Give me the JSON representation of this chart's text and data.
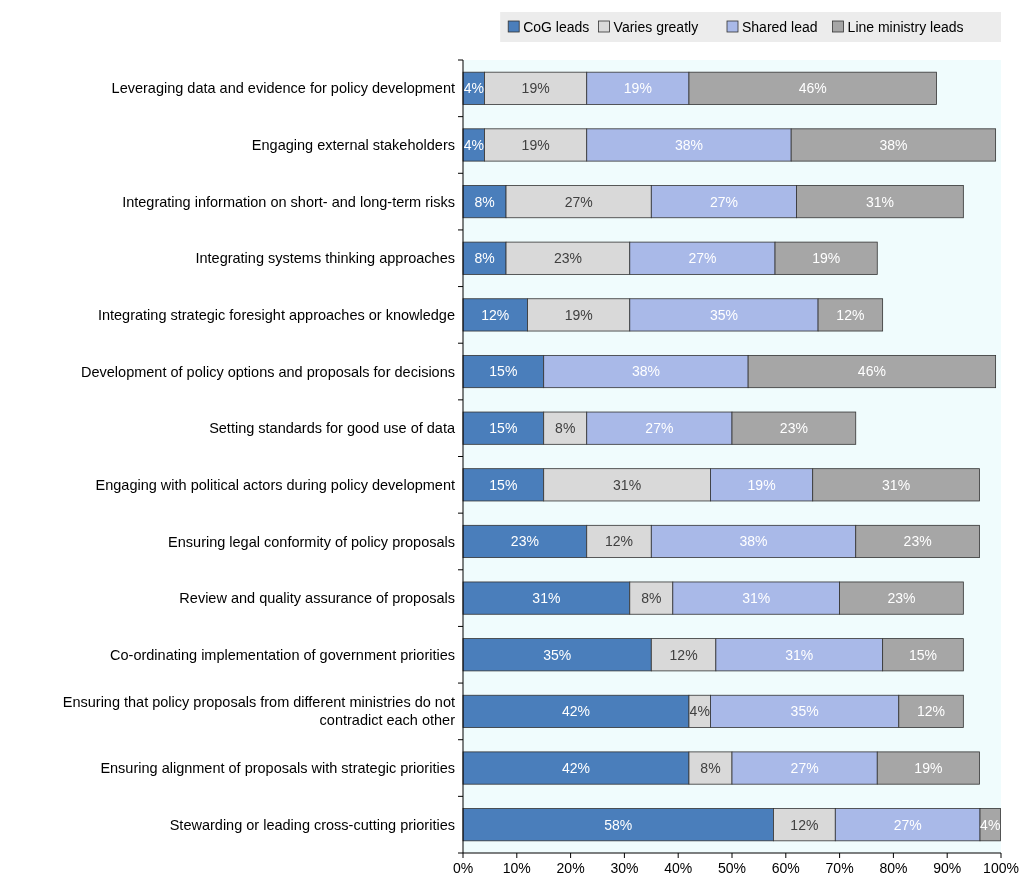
{
  "chart_data": {
    "type": "bar",
    "orientation": "horizontal",
    "stacked": true,
    "categories": [
      "Leveraging data and evidence for policy development",
      "Engaging external stakeholders",
      "Integrating information on short- and long-term risks",
      "Integrating systems thinking approaches",
      "Integrating strategic foresight approaches or knowledge",
      "Development of policy options and proposals for decisions",
      "Setting standards for good use of data",
      "Engaging with political actors during policy development",
      "Ensuring legal conformity of policy proposals ",
      "Review and quality assurance of proposals",
      "Co-ordinating implementation of government priorities",
      "Ensuring that policy proposals from different ministries do not contradict each other",
      "Ensuring alignment of proposals with strategic priorities",
      "Stewarding or leading cross-cutting priorities"
    ],
    "series": [
      {
        "name": "CoG leads",
        "color": "#4a7ebb",
        "values": [
          4,
          4,
          8,
          8,
          12,
          15,
          15,
          15,
          23,
          31,
          35,
          42,
          42,
          57.7
        ],
        "value_labels": [
          "4%",
          "4%",
          "8%",
          "8%",
          "12%",
          "15%",
          "15%",
          "15%",
          "23%",
          "31%",
          "35%",
          "42%",
          "42%",
          "58%"
        ]
      },
      {
        "name": "Varies greatly",
        "color": "#d9d9d9",
        "values": [
          19,
          19,
          27,
          23,
          19,
          null,
          8,
          31,
          12,
          8,
          12,
          4,
          8,
          11.5
        ],
        "value_labels": [
          "19%",
          "19%",
          "27%",
          "23%",
          "19%",
          null,
          "8%",
          "31%",
          "12%",
          "8%",
          "12%",
          "4%",
          "8%",
          "12%"
        ]
      },
      {
        "name": "Shared lead",
        "color": "#a9b9e8",
        "values": [
          19,
          38,
          27,
          27,
          35,
          38,
          27,
          19,
          38,
          31,
          31,
          35,
          27,
          26.9
        ],
        "value_labels": [
          "19%",
          "38%",
          "27%",
          "27%",
          "35%",
          "38%",
          "27%",
          "19%",
          "38%",
          "31%",
          "31%",
          "35%",
          "27%",
          "27%"
        ]
      },
      {
        "name": "Line ministry leads",
        "color": "#a6a6a6",
        "values": [
          46,
          38,
          31,
          19,
          12,
          46,
          23,
          31,
          23,
          23,
          15,
          12,
          19,
          3.8
        ],
        "value_labels": [
          "46%",
          "38%",
          "31%",
          "19%",
          "12%",
          "46%",
          "23%",
          "31%",
          "23%",
          "23%",
          "15%",
          "12%",
          "19%",
          "4%"
        ]
      }
    ],
    "xlim": [
      0,
      100
    ],
    "xticks": [
      {
        "value": 0,
        "label": "0%"
      },
      {
        "value": 10,
        "label": "10%"
      },
      {
        "value": 20,
        "label": "20%"
      },
      {
        "value": 30,
        "label": "30%"
      },
      {
        "value": 40,
        "label": "40%"
      },
      {
        "value": 50,
        "label": "50%"
      },
      {
        "value": 60,
        "label": "60%"
      },
      {
        "value": 70,
        "label": "70%"
      },
      {
        "value": 80,
        "label": "80%"
      },
      {
        "value": 90,
        "label": "90%"
      },
      {
        "value": 100,
        "label": "100%"
      }
    ],
    "legend": "top right",
    "grid": false
  }
}
